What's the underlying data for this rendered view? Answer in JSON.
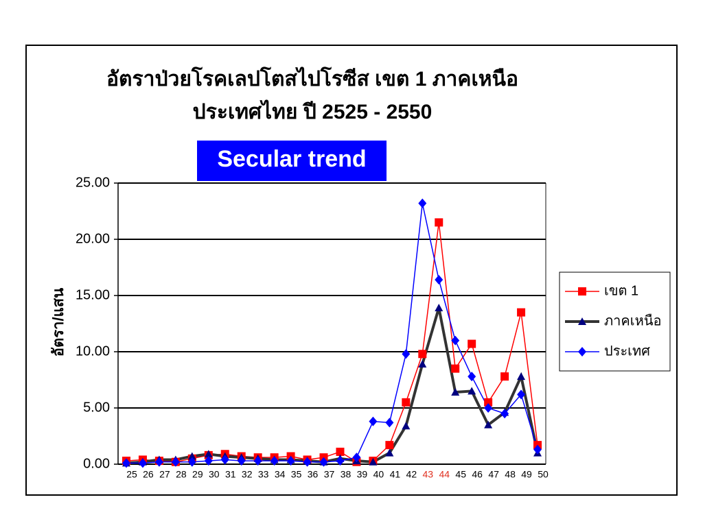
{
  "chart_data": {
    "type": "line",
    "title": "อัตราป่วยโรคเลปโตสไปโรซีส เขต 1 ภาคเหนือ",
    "title_line2": "ประเทศไทย ปี 2525 - 2550",
    "subtitle": "Secular trend",
    "y_label": "อัตรา/แสน",
    "categories": [
      "25",
      "26",
      "27",
      "28",
      "29",
      "30",
      "31",
      "32",
      "33",
      "34",
      "35",
      "36",
      "37",
      "38",
      "39",
      "40",
      "41",
      "42",
      "43",
      "44",
      "45",
      "46",
      "47",
      "48",
      "49",
      "50"
    ],
    "xtick_colors": [
      "#000",
      "#000",
      "#000",
      "#000",
      "#000",
      "#000",
      "#000",
      "#000",
      "#000",
      "#000",
      "#000",
      "#000",
      "#000",
      "#000",
      "#000",
      "#000",
      "#000",
      "#000",
      "#e03020",
      "#e03020",
      "#000",
      "#000",
      "#000",
      "#000",
      "#000",
      "#000"
    ],
    "series": [
      {
        "name": "เขต 1",
        "color": "#ff0000",
        "marker": "square",
        "width": 1.5,
        "values": [
          0.3,
          0.4,
          0.3,
          0.2,
          0.5,
          0.8,
          0.9,
          0.7,
          0.6,
          0.6,
          0.7,
          0.4,
          0.6,
          1.1,
          0.2,
          0.3,
          1.7,
          5.5,
          9.8,
          21.5,
          8.5,
          10.7,
          5.5,
          7.8,
          13.5,
          1.7
        ]
      },
      {
        "name": "ภาคเหนือ",
        "color": "#333333",
        "marker": "triangle",
        "width": 4,
        "values": [
          0.1,
          0.2,
          0.4,
          0.4,
          0.7,
          0.9,
          0.7,
          0.6,
          0.5,
          0.4,
          0.4,
          0.3,
          0.2,
          0.5,
          0.3,
          0.2,
          1.0,
          3.4,
          8.9,
          13.9,
          6.4,
          6.5,
          3.5,
          4.6,
          7.8,
          1.0
        ]
      },
      {
        "name": "ประเทศ",
        "color": "#0000ff",
        "marker": "diamond",
        "width": 1.5,
        "values": [
          0.1,
          0.1,
          0.2,
          0.2,
          0.2,
          0.3,
          0.4,
          0.3,
          0.3,
          0.3,
          0.3,
          0.2,
          0.2,
          0.3,
          0.6,
          3.8,
          3.7,
          9.8,
          23.2,
          16.4,
          11.0,
          7.8,
          5.0,
          4.5,
          6.2,
          1.3
        ]
      }
    ],
    "ylim": [
      0,
      25
    ],
    "yticks": [
      {
        "value": 0,
        "label": "0.00"
      },
      {
        "value": 5,
        "label": "5.00"
      },
      {
        "value": 10,
        "label": "10.00"
      },
      {
        "value": 15,
        "label": "15.00"
      },
      {
        "value": 20,
        "label": "20.00"
      },
      {
        "value": 25,
        "label": "25.00"
      }
    ],
    "grid": true,
    "legend": "right"
  }
}
